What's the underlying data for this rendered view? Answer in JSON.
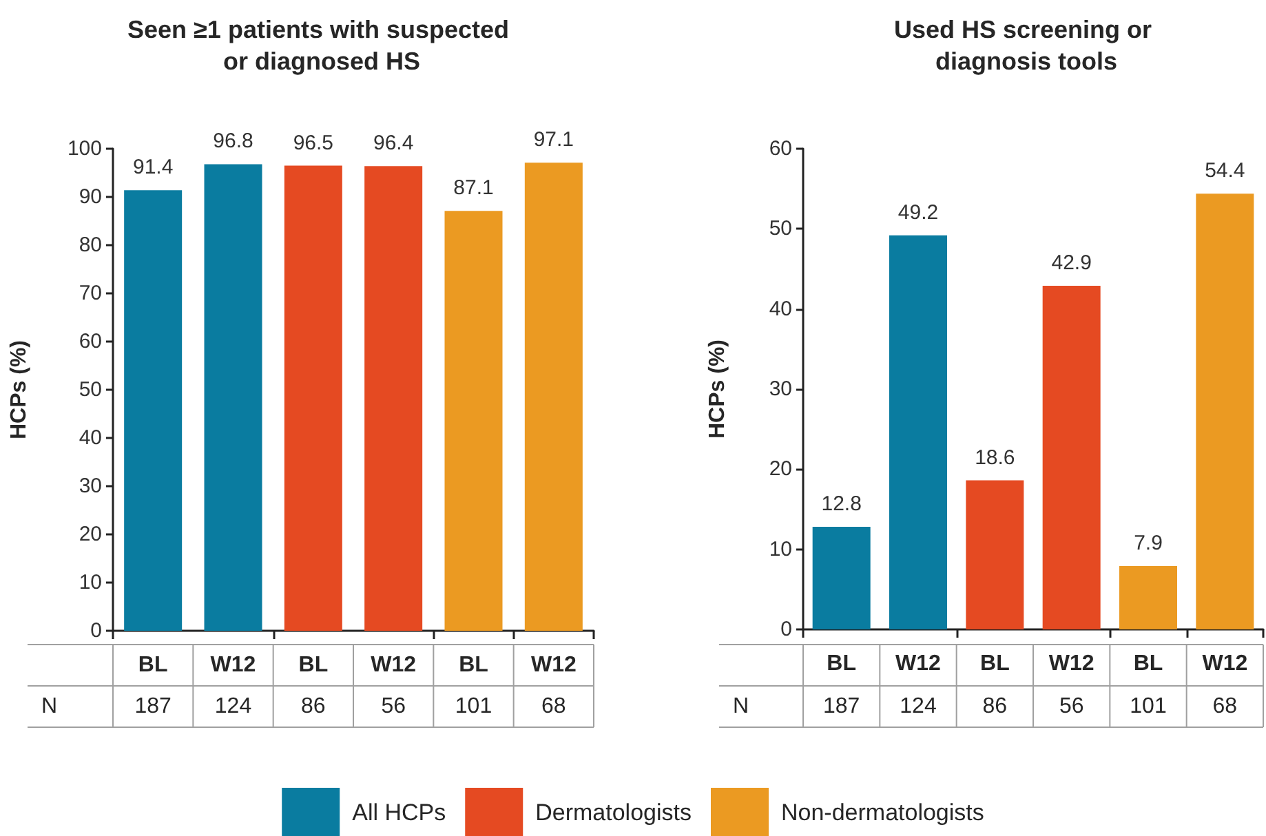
{
  "chart_data": [
    {
      "type": "bar",
      "title": "Seen ≥1 patients with suspected or diagnosed HS",
      "ylabel": "HCPs (%)",
      "categories": [
        "BL",
        "W12",
        "BL",
        "W12",
        "BL",
        "W12"
      ],
      "series": [
        {
          "name": "All HCPs",
          "color": "#0a7ca0",
          "values": [
            91.4,
            96.8,
            null,
            null,
            null,
            null
          ]
        },
        {
          "name": "Dermatologists",
          "color": "#e54a22",
          "values": [
            null,
            null,
            96.5,
            96.4,
            null,
            null
          ]
        },
        {
          "name": "Non-dermatologists",
          "color": "#eb9a22",
          "values": [
            null,
            null,
            null,
            null,
            87.1,
            97.1
          ]
        }
      ],
      "ylim": [
        0,
        100
      ],
      "yticks": [
        0,
        10,
        20,
        30,
        40,
        50,
        60,
        70,
        80,
        90,
        100
      ],
      "data_labels": true,
      "legend": "bottom",
      "annotations": [
        "N",
        "187",
        "124",
        "86",
        "56",
        "101",
        "68"
      ]
    },
    {
      "type": "bar",
      "title": "Used HS screening or diagnosis tools",
      "ylabel": "HCPs (%)",
      "categories": [
        "BL",
        "W12",
        "BL",
        "W12",
        "BL",
        "W12"
      ],
      "series": [
        {
          "name": "All HCPs",
          "color": "#0a7ca0",
          "values": [
            12.8,
            49.2,
            null,
            null,
            null,
            null
          ]
        },
        {
          "name": "Dermatologists",
          "color": "#e54a22",
          "values": [
            null,
            null,
            18.6,
            42.9,
            null,
            null
          ]
        },
        {
          "name": "Non-dermatologists",
          "color": "#eb9a22",
          "values": [
            null,
            null,
            null,
            null,
            7.9,
            54.4
          ]
        }
      ],
      "ylim": [
        0,
        60
      ],
      "yticks": [
        0,
        10,
        20,
        30,
        40,
        50,
        60
      ],
      "data_labels": true,
      "legend": "bottom",
      "annotations": [
        "N",
        "187",
        "124",
        "86",
        "56",
        "101",
        "68"
      ]
    }
  ]
}
